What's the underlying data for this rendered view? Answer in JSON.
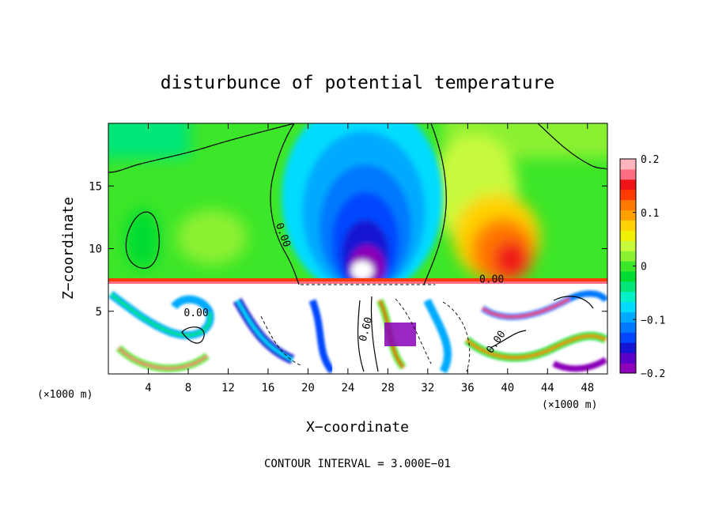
{
  "chart_data": {
    "type": "heatmap",
    "title": "disturbunce of potential temperature",
    "xlabel": "X−coordinate",
    "ylabel": "Z−coordinate",
    "x_unit": "(×1000 m)",
    "z_unit": "(×1000 m)",
    "xlim": [
      0,
      50
    ],
    "ylim": [
      0,
      20
    ],
    "x_ticks": [
      4,
      8,
      12,
      16,
      20,
      24,
      28,
      32,
      36,
      40,
      44,
      48
    ],
    "x_tick_labels": [
      "4",
      "8",
      "12",
      "16",
      "20",
      "24",
      "28",
      "32",
      "36",
      "40",
      "44",
      "48"
    ],
    "y_ticks": [
      5,
      10,
      15
    ],
    "y_tick_labels": [
      "5",
      "10",
      "15"
    ],
    "colorbar": {
      "range": [
        -0.2,
        0.2
      ],
      "ticks": [
        0.2,
        0.1,
        0,
        -0.1,
        -0.2
      ],
      "tick_labels": [
        "0.2",
        "0.1",
        "0",
        "−0.1",
        "−0.2"
      ],
      "levels": [
        "#8b00b8",
        "#5a00c8",
        "#1414d2",
        "#0046ff",
        "#0078ff",
        "#00aaff",
        "#00dcff",
        "#00f0c8",
        "#00e678",
        "#00dc32",
        "#3ce628",
        "#8cf032",
        "#c8fa3c",
        "#f0f000",
        "#ffd200",
        "#ffa000",
        "#ff7800",
        "#ff3c00",
        "#f01414",
        "#ff6e82",
        "#ffb4be"
      ]
    },
    "contour_labels": [
      "0.00",
      "0.00",
      "0.00",
      "0.60",
      "0.00"
    ],
    "contour_interval_text": "CONTOUR INTERVAL = 3.000E−01",
    "grid": false
  }
}
